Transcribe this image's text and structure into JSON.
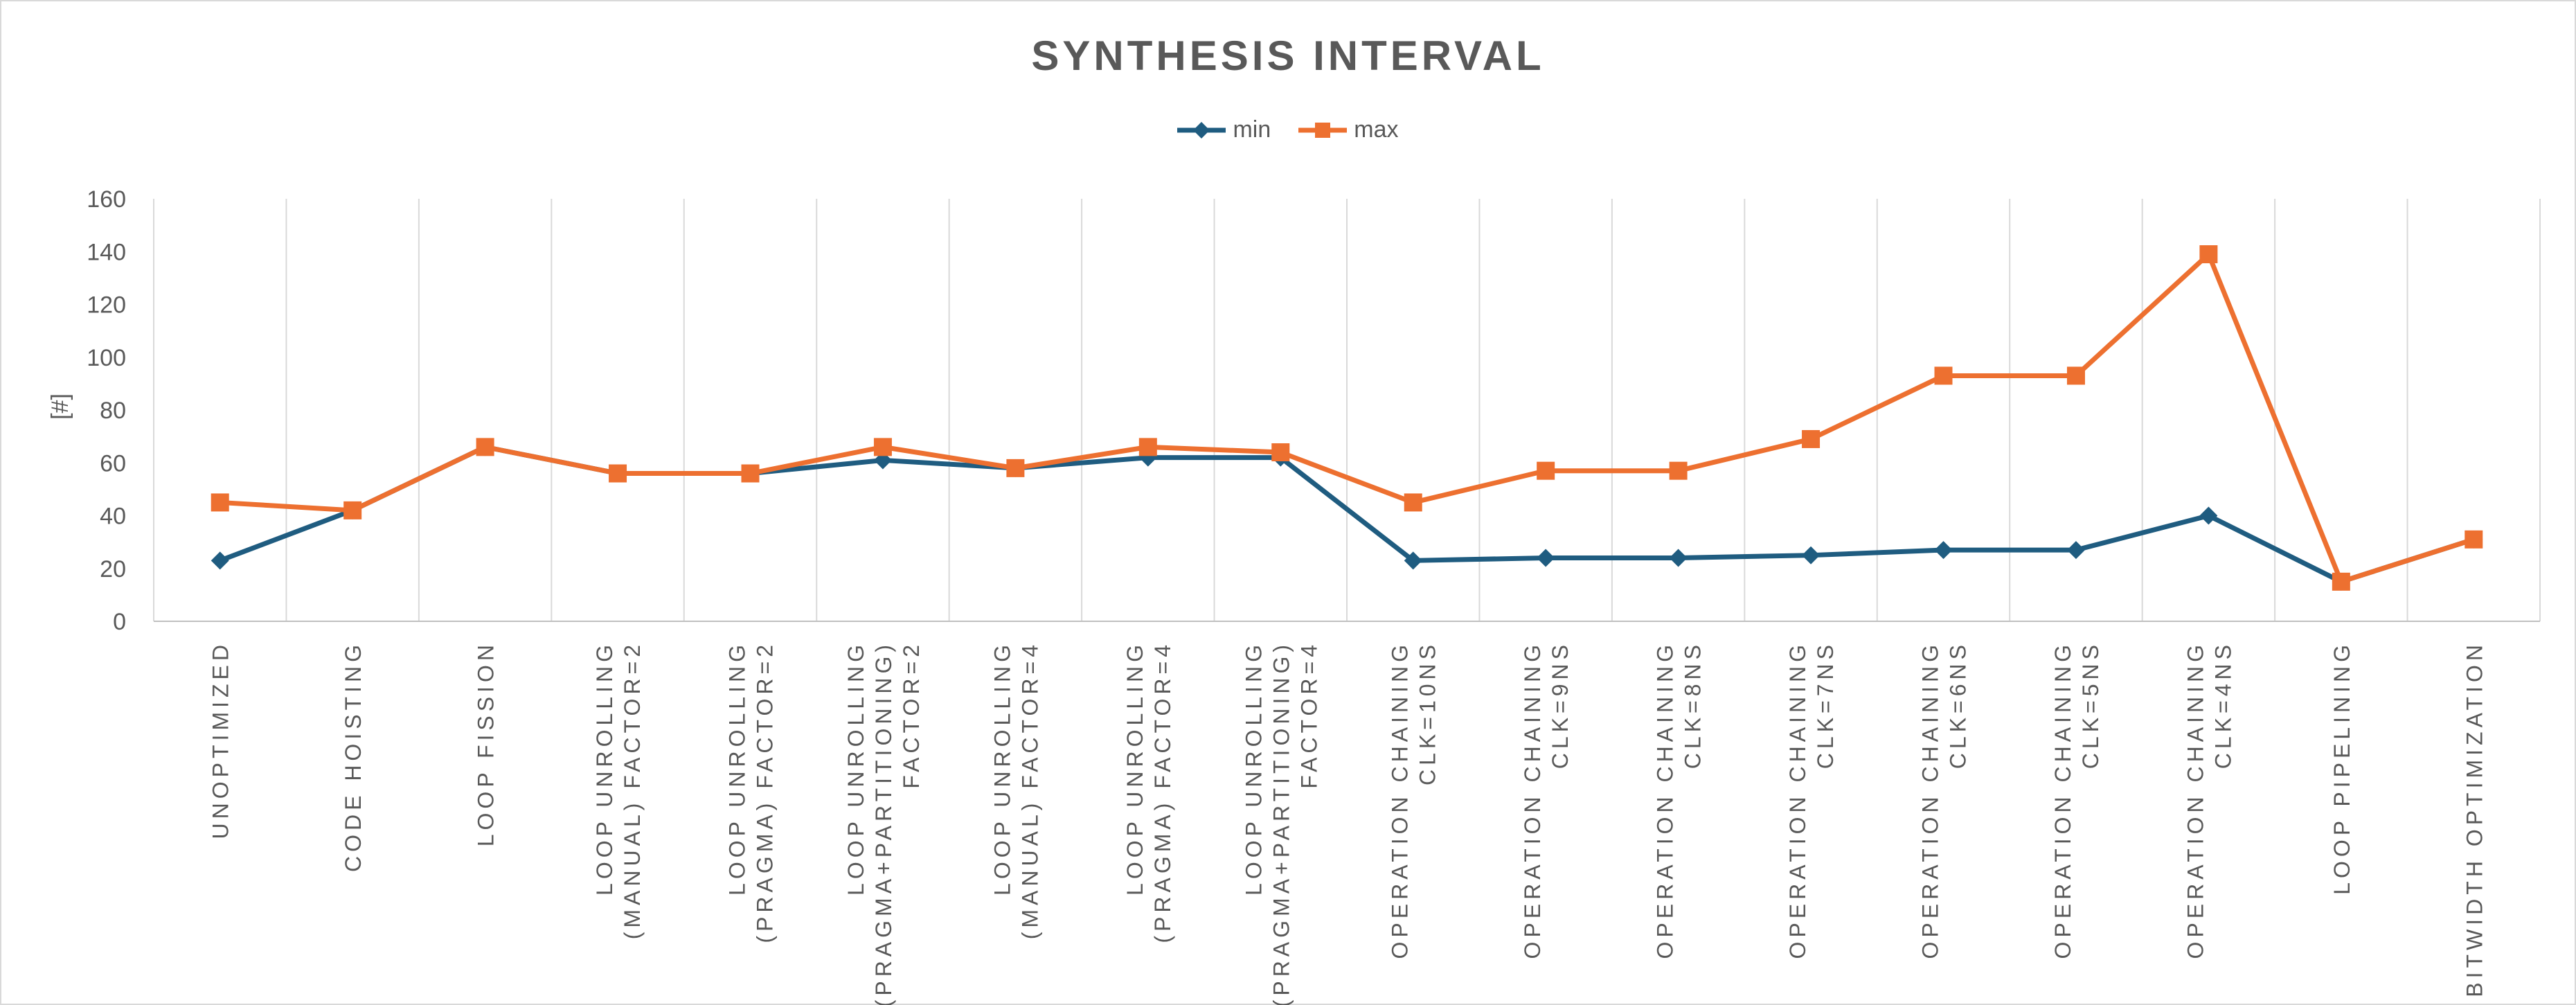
{
  "chart_data": {
    "type": "line",
    "title": "SYNTHESIS INTERVAL",
    "xlabel": "",
    "ylabel": "[#]",
    "ylim": [
      0,
      160
    ],
    "yticks": [
      0,
      20,
      40,
      60,
      80,
      100,
      120,
      140,
      160
    ],
    "legend_position": "top",
    "gridlines": "vertical",
    "categories": [
      [
        "UNOPTIMIZED"
      ],
      [
        "CODE HOISTING"
      ],
      [
        "LOOP FISSION"
      ],
      [
        "LOOP UNROLLING",
        "(MANUAL) FACTOR=2"
      ],
      [
        "LOOP UNROLLING",
        "(PRAGMA) FACTOR=2"
      ],
      [
        "LOOP UNROLLING",
        "(PRAGMA+PARTITIONING)",
        "FACTOR=2"
      ],
      [
        "LOOP UNROLLING",
        "(MANUAL) FACTOR=4"
      ],
      [
        "LOOP UNROLLING",
        "(PRAGMA) FACTOR=4"
      ],
      [
        "LOOP UNROLLING",
        "(PRAGMA+PARTITIONING)",
        "FACTOR=4"
      ],
      [
        "OPERATION CHAINING",
        "CLK=10NS"
      ],
      [
        "OPERATION CHAINING",
        "CLK=9NS"
      ],
      [
        "OPERATION CHAINING",
        "CLK=8NS"
      ],
      [
        "OPERATION CHAINING",
        "CLK=7NS"
      ],
      [
        "OPERATION CHAINING",
        "CLK=6NS"
      ],
      [
        "OPERATION CHAINING",
        "CLK=5NS"
      ],
      [
        "OPERATION CHAINING",
        "CLK=4NS"
      ],
      [
        "LOOP PIPELINING"
      ],
      [
        "BITWIDTH OPTIMIZATION"
      ]
    ],
    "series": [
      {
        "name": "min",
        "color": "#1f5c80",
        "marker": "diamond",
        "values": [
          23,
          42,
          66,
          56,
          56,
          61,
          58,
          62,
          62,
          23,
          24,
          24,
          25,
          27,
          27,
          40,
          15,
          31
        ]
      },
      {
        "name": "max",
        "color": "#ed7030",
        "marker": "square",
        "values": [
          45,
          42,
          66,
          56,
          56,
          66,
          58,
          66,
          64,
          45,
          57,
          57,
          69,
          93,
          93,
          139,
          15,
          31
        ]
      }
    ]
  }
}
